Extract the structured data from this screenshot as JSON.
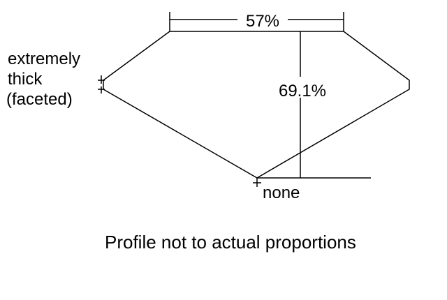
{
  "diagram": {
    "table_label": "57%",
    "depth_label": "69.1%",
    "girdle_label_lines": [
      "extremely",
      "thick",
      "(faceted)"
    ],
    "culet_label": "none",
    "caption": "Profile not to actual proportions",
    "line_color": "#000000"
  }
}
